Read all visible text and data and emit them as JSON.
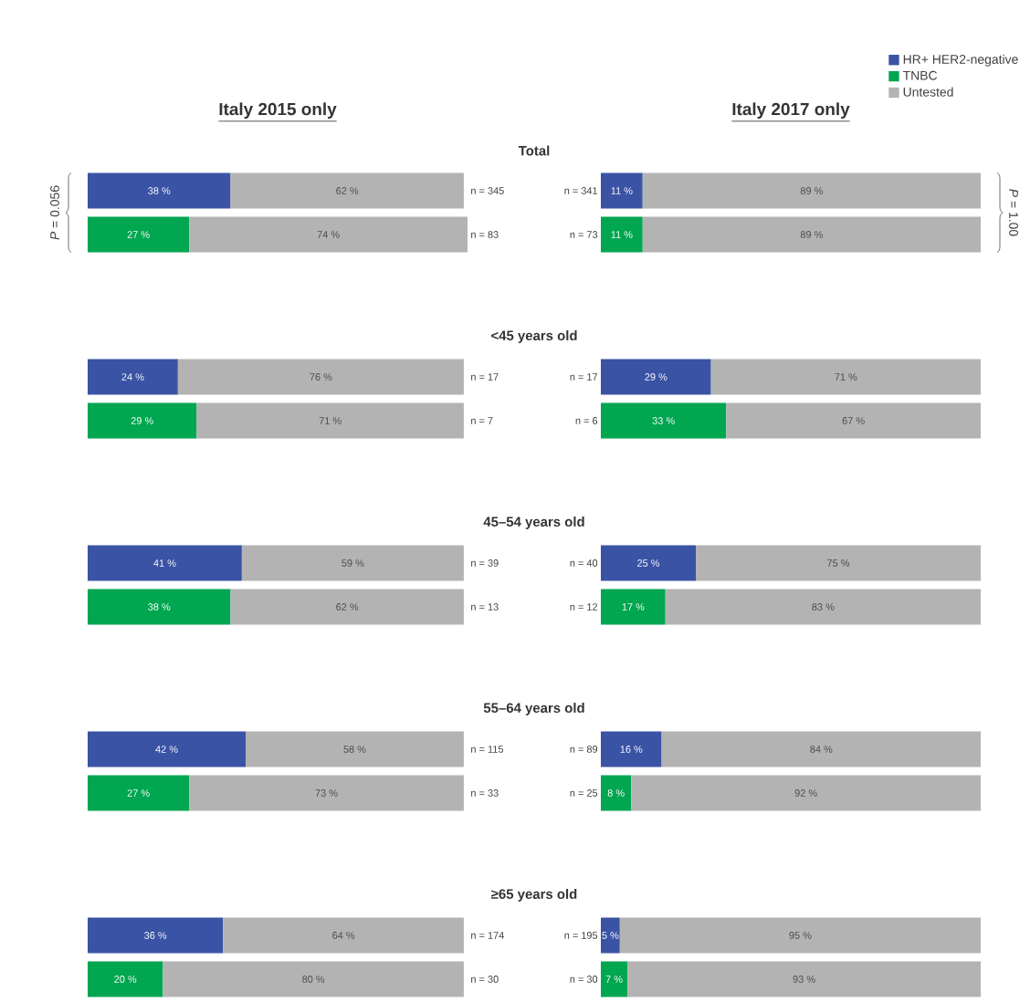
{
  "chart_data": [
    {
      "type": "bar",
      "orientation": "horizontal",
      "stacked": true,
      "title": "Italy 2015 only",
      "categories": [
        "n = 345",
        "n = 83",
        "n = 17",
        "n = 7",
        "n = 39",
        "n = 13",
        "n = 115",
        "n = 33",
        "n = 174",
        "n = 30"
      ],
      "xlim": [
        0,
        101
      ],
      "tick_labels": "y",
      "series": [
        {
          "color": "#3a53a4",
          "values": [
            38,
            null,
            24,
            null,
            41,
            null,
            42,
            null,
            36,
            null
          ],
          "value_labels": [
            "38 %",
            null,
            "24 %",
            null,
            "41 %",
            null,
            "42 %",
            null,
            "36 %",
            null
          ]
        },
        {
          "color": "#00a650",
          "values": [
            null,
            27,
            null,
            29,
            null,
            38,
            null,
            27,
            null,
            20
          ],
          "value_labels": [
            null,
            "27 %",
            null,
            "29 %",
            null,
            "38 %",
            null,
            "27 %",
            null,
            "20 %"
          ]
        },
        {
          "color": "#b3b3b3",
          "values": [
            62,
            74,
            76,
            71,
            59,
            62,
            58,
            73,
            64,
            80
          ],
          "value_labels": [
            "62 %",
            "74 %",
            "76 %",
            "71 %",
            "59 %",
            "62 %",
            "58 %",
            "73 %",
            "64 %",
            "80 %"
          ]
        }
      ],
      "annotations": [
        "Total",
        "<45 years old",
        "45–54 years old",
        "55–64 years old",
        "≥65 years old",
        "*P* = 0.056"
      ]
    },
    {
      "type": "bar",
      "orientation": "horizontal",
      "stacked": true,
      "title": "Italy 2017 only",
      "categories": [
        "n = 341",
        "n = 73",
        "n = 17",
        "n = 6",
        "n = 40",
        "n = 12",
        "n = 89",
        "n = 25",
        "n = 195",
        "n = 30"
      ],
      "xlim": [
        0,
        100
      ],
      "tick_labels": "y",
      "legend": "top right",
      "series": [
        {
          "name": "HR+ HER2-negative",
          "color": "#3a53a4",
          "values": [
            11,
            null,
            29,
            null,
            25,
            null,
            16,
            null,
            5,
            null
          ],
          "value_labels": [
            "11 %",
            null,
            "29 %",
            null,
            "25 %",
            null,
            "16 %",
            null,
            "5 %",
            null
          ]
        },
        {
          "name": "TNBC",
          "color": "#00a650",
          "values": [
            null,
            11,
            null,
            33,
            null,
            17,
            null,
            8,
            null,
            7
          ],
          "value_labels": [
            null,
            "11 %",
            null,
            "33 %",
            null,
            "17 %",
            null,
            "8 %",
            null,
            "7 %"
          ]
        },
        {
          "name": "Untested",
          "color": "#b3b3b3",
          "values": [
            89,
            89,
            71,
            67,
            75,
            83,
            84,
            92,
            95,
            93
          ],
          "value_labels": [
            "89 %",
            "89 %",
            "71 %",
            "67 %",
            "75 %",
            "83 %",
            "84 %",
            "92 %",
            "95 %",
            "93 %"
          ]
        }
      ],
      "annotations": [
        "*P* = 1.00"
      ]
    }
  ]
}
